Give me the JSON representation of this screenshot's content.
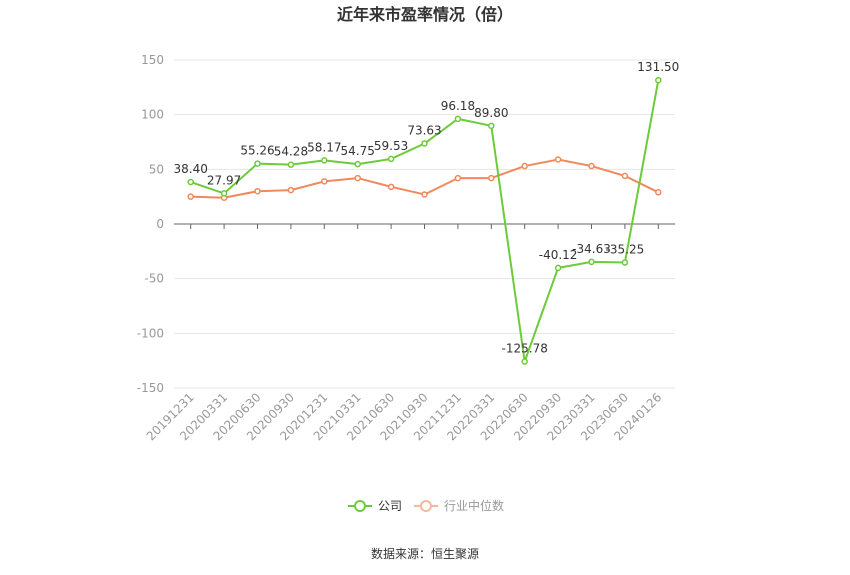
{
  "chart_data": {
    "type": "line",
    "title": "近年来市盈率情况（倍）",
    "categories": [
      "20191231",
      "20200331",
      "20200630",
      "20200930",
      "20201231",
      "20210331",
      "20210630",
      "20210930",
      "20211231",
      "20220331",
      "20220630",
      "20220930",
      "20230331",
      "20230630",
      "20240126"
    ],
    "series": [
      {
        "name": "公司",
        "color": "#6ccb3b",
        "values": [
          38.4,
          27.97,
          55.26,
          54.28,
          58.17,
          54.75,
          59.53,
          73.63,
          96.18,
          89.8,
          -125.78,
          -40.12,
          -34.63,
          -35.25,
          131.5
        ],
        "labels": [
          "38.40",
          "27.97",
          "55.26",
          "54.28",
          "58.17",
          "54.75",
          "59.53",
          "73.63",
          "96.18",
          "89.80",
          "-125.78",
          "-40.12",
          "-34.63",
          "-35.25",
          "131.50"
        ]
      },
      {
        "name": "行业中位数",
        "color": "#f0895c",
        "values": [
          25,
          24,
          30,
          31,
          39,
          42,
          34,
          27,
          42,
          42,
          53,
          59,
          53,
          44,
          29
        ]
      }
    ],
    "ylim": [
      -150,
      150
    ],
    "yticks": [
      "150",
      "100",
      "50",
      "0",
      "-50",
      "-100",
      "-150"
    ],
    "grid": true,
    "legend": "bottom-center"
  },
  "source_text": "数据来源：恒生聚源"
}
